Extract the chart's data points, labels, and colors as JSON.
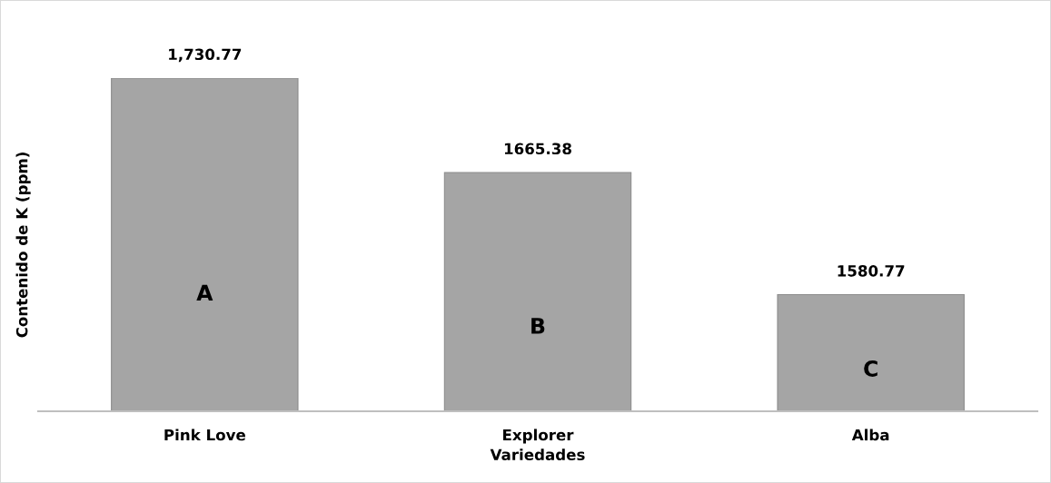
{
  "chart_data": {
    "type": "bar",
    "xlabel": "Variedades",
    "ylabel": "Contenido de K (ppm)",
    "categories": [
      "Pink Love",
      "Explorer",
      "Alba"
    ],
    "values": [
      1730.77,
      1665.38,
      1580.77
    ],
    "value_labels": [
      "1,730.77",
      "1665.38",
      "1580.77"
    ],
    "color": "#a5a5a5",
    "ylim": [
      1500,
      1730.77
    ],
    "tick_labels": "x",
    "grid": false,
    "legend": false,
    "annotations": [
      "A",
      "B",
      "C"
    ]
  }
}
